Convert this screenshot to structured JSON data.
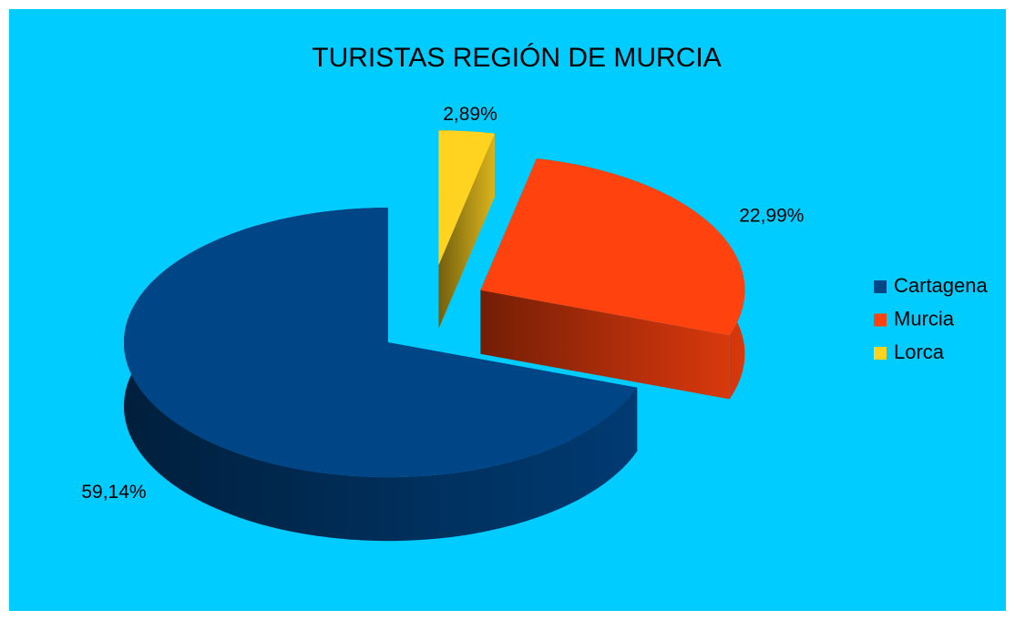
{
  "chart_data": {
    "type": "pie",
    "title": "TURISTAS REGIÓN DE MURCIA",
    "categories": [
      "Cartagena",
      "Murcia",
      "Lorca"
    ],
    "values": [
      59.14,
      22.99,
      2.89
    ],
    "value_labels": [
      "59,14%",
      "22,99%",
      "2,89%"
    ],
    "colors": [
      "#004586",
      "#ff420e",
      "#ffd320"
    ],
    "legend": "right"
  }
}
